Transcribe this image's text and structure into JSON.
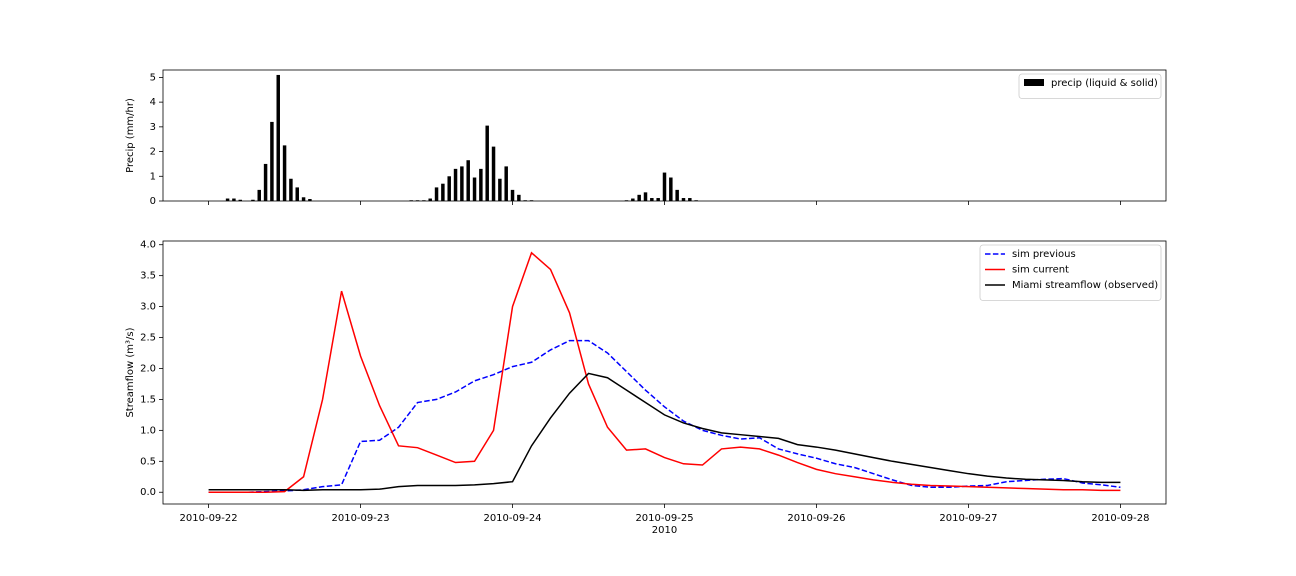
{
  "chart_data": [
    {
      "type": "bar",
      "ylabel": "Precip (mm/hr)",
      "x": [
        3,
        4,
        5,
        7,
        8,
        9,
        10,
        11,
        12,
        13,
        14,
        15,
        16,
        32,
        33,
        34,
        35,
        36,
        37,
        38,
        39,
        40,
        41,
        42,
        43,
        44,
        45,
        46,
        47,
        48,
        49,
        50,
        51,
        66,
        67,
        68,
        69,
        70,
        71,
        72,
        73,
        74,
        75,
        76,
        77
      ],
      "series": [
        {
          "name": "precip (liquid & solid)",
          "color": "#000000",
          "values": [
            0.1,
            0.1,
            0.05,
            0.05,
            0.45,
            1.5,
            3.2,
            5.1,
            2.25,
            0.9,
            0.55,
            0.15,
            0.08,
            0.03,
            0.03,
            0.03,
            0.1,
            0.55,
            0.7,
            1.0,
            1.3,
            1.4,
            1.65,
            0.95,
            1.3,
            3.05,
            2.2,
            0.9,
            1.4,
            0.45,
            0.25,
            0.03,
            0.03,
            0.03,
            0.1,
            0.25,
            0.35,
            0.12,
            0.12,
            1.15,
            0.95,
            0.45,
            0.12,
            0.12,
            0.03
          ]
        }
      ],
      "xlim": [
        -7.2,
        151.2
      ],
      "xticks": [
        0,
        24,
        48,
        72,
        96,
        120,
        144
      ],
      "ylim": [
        0,
        5.3
      ],
      "yticks": [
        0,
        1,
        2,
        3,
        4,
        5
      ],
      "legend": "upper right"
    },
    {
      "type": "line",
      "xlabel": "2010",
      "ylabel": "Streamflow (m³/s)",
      "x": [
        0,
        3,
        6,
        9,
        12,
        15,
        18,
        21,
        24,
        27,
        30,
        33,
        36,
        39,
        42,
        45,
        48,
        51,
        54,
        57,
        60,
        63,
        66,
        69,
        72,
        75,
        78,
        81,
        84,
        87,
        90,
        93,
        96,
        99,
        102,
        105,
        108,
        111,
        114,
        117,
        120,
        123,
        126,
        129,
        132,
        135,
        138,
        141,
        144
      ],
      "series": [
        {
          "name": "sim previous",
          "color": "#0000ff",
          "linestyle": "dashed",
          "values": [
            0,
            0,
            0,
            0.01,
            0.02,
            0.04,
            0.09,
            0.12,
            0.82,
            0.84,
            1.05,
            1.45,
            1.5,
            1.62,
            1.8,
            1.9,
            2.03,
            2.1,
            2.3,
            2.45,
            2.45,
            2.25,
            1.95,
            1.65,
            1.38,
            1.15,
            1.0,
            0.92,
            0.86,
            0.88,
            0.7,
            0.62,
            0.55,
            0.46,
            0.4,
            0.3,
            0.2,
            0.11,
            0.08,
            0.08,
            0.1,
            0.11,
            0.17,
            0.19,
            0.21,
            0.22,
            0.15,
            0.12,
            0.08
          ]
        },
        {
          "name": "sim current",
          "color": "#ff0000",
          "linestyle": "solid",
          "values": [
            0,
            0,
            0,
            0,
            0.01,
            0.25,
            1.5,
            3.25,
            2.2,
            1.4,
            0.75,
            0.72,
            0.6,
            0.48,
            0.5,
            1.0,
            3.0,
            3.87,
            3.6,
            2.9,
            1.75,
            1.05,
            0.68,
            0.7,
            0.56,
            0.46,
            0.44,
            0.7,
            0.73,
            0.7,
            0.6,
            0.48,
            0.37,
            0.3,
            0.25,
            0.2,
            0.16,
            0.13,
            0.11,
            0.1,
            0.09,
            0.08,
            0.07,
            0.06,
            0.05,
            0.04,
            0.04,
            0.03,
            0.03
          ]
        },
        {
          "name": "Miami streamflow (observed)",
          "color": "#000000",
          "linestyle": "solid",
          "values": [
            0.04,
            0.04,
            0.04,
            0.04,
            0.04,
            0.03,
            0.04,
            0.04,
            0.04,
            0.05,
            0.09,
            0.11,
            0.11,
            0.11,
            0.12,
            0.14,
            0.17,
            0.75,
            1.2,
            1.6,
            1.92,
            1.85,
            1.65,
            1.45,
            1.25,
            1.12,
            1.03,
            0.96,
            0.93,
            0.9,
            0.87,
            0.77,
            0.73,
            0.68,
            0.62,
            0.56,
            0.5,
            0.45,
            0.4,
            0.35,
            0.3,
            0.26,
            0.23,
            0.21,
            0.2,
            0.19,
            0.17,
            0.16,
            0.16
          ]
        }
      ],
      "xlim": [
        -7.2,
        151.2
      ],
      "xticks": [
        {
          "value": 0,
          "label": "2010-09-22"
        },
        {
          "value": 24,
          "label": "2010-09-23"
        },
        {
          "value": 48,
          "label": "2010-09-24"
        },
        {
          "value": 72,
          "label": "2010-09-25"
        },
        {
          "value": 96,
          "label": "2010-09-26"
        },
        {
          "value": 120,
          "label": "2010-09-27"
        },
        {
          "value": 144,
          "label": "2010-09-28"
        }
      ],
      "ylim": [
        -0.19,
        4.06
      ],
      "yticks": [
        {
          "value": 0,
          "label": "0.0"
        },
        0.5,
        {
          "value": 1,
          "label": "1.0"
        },
        1.5,
        {
          "value": 2,
          "label": "2.0"
        },
        2.5,
        {
          "value": 3,
          "label": "3.0"
        },
        3.5,
        {
          "value": 4,
          "label": "4.0"
        }
      ],
      "legend": "upper right"
    }
  ]
}
